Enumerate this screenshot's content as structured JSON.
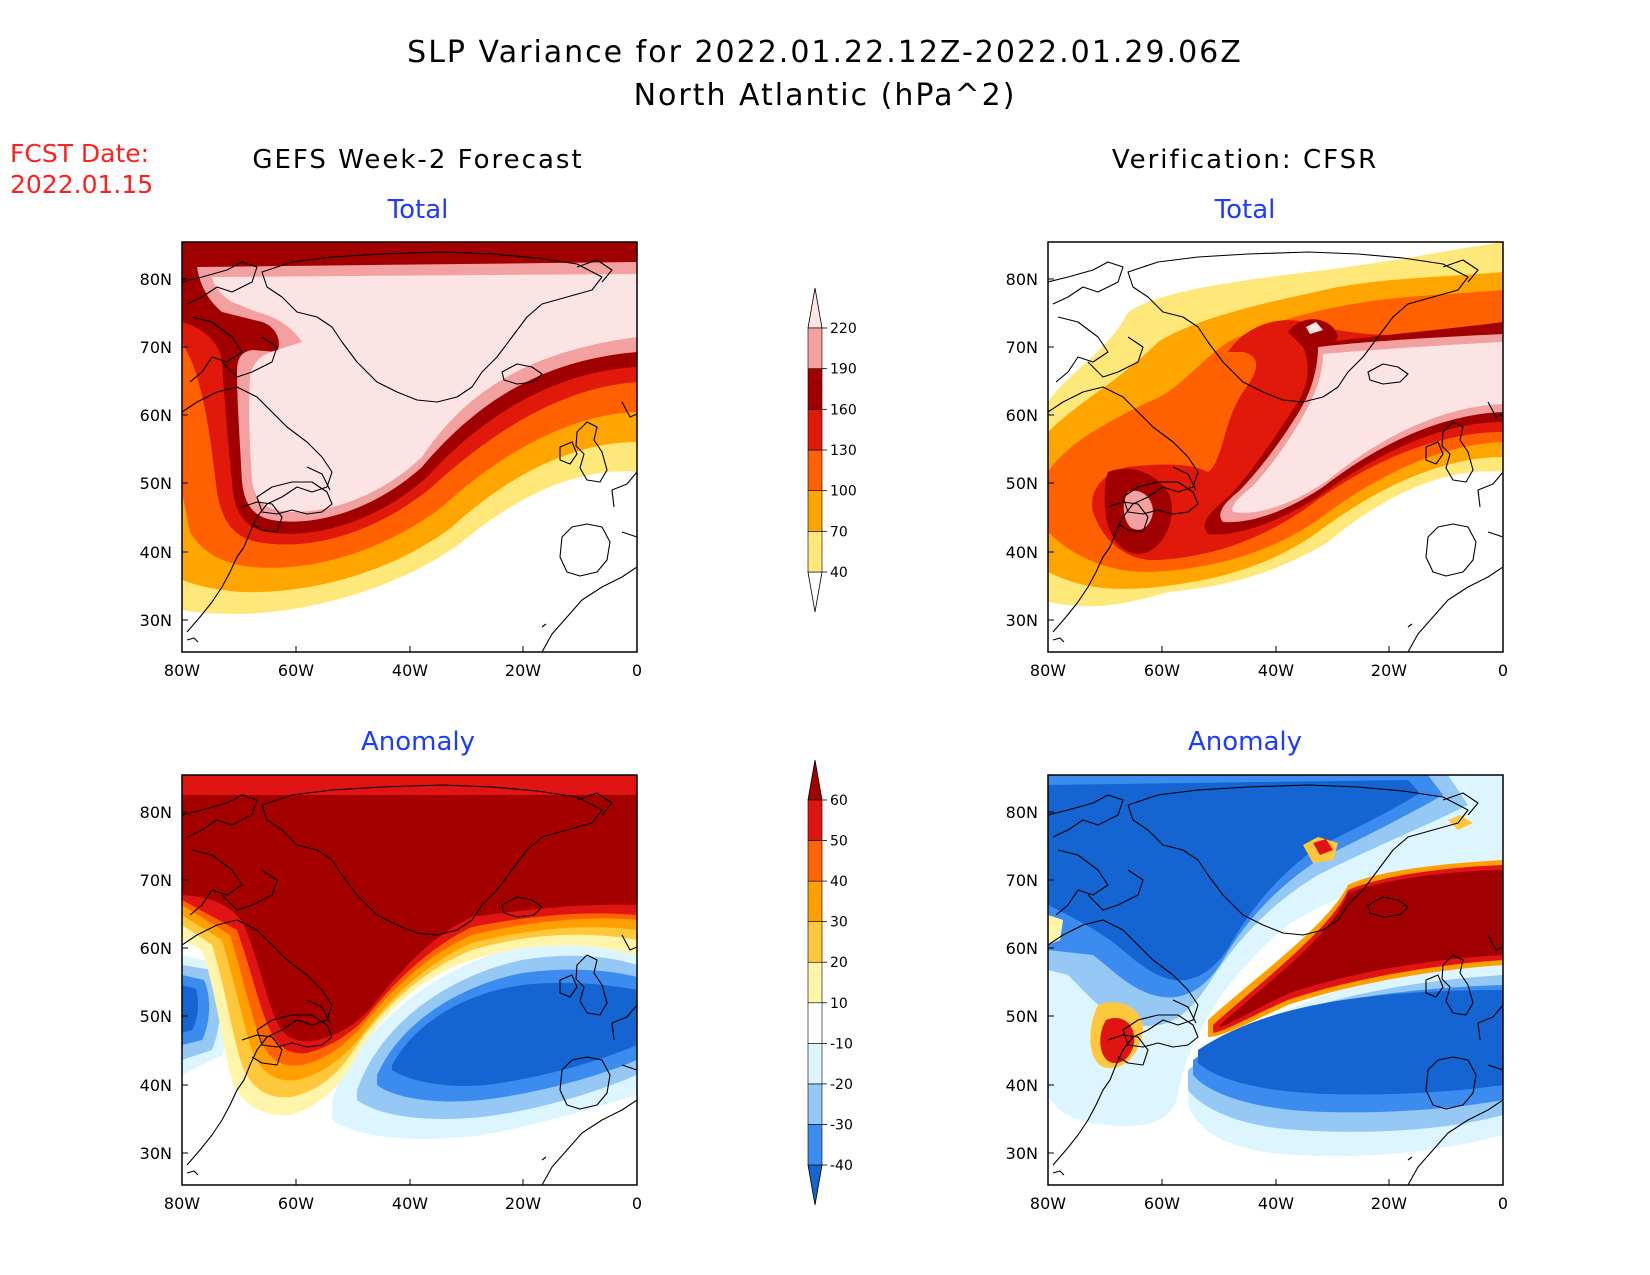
{
  "title": {
    "line1": "SLP Variance for 2022.01.22.12Z-2022.01.29.06Z",
    "line2": "North Atlantic (hPa^2)"
  },
  "fcst_date": {
    "label": "FCST Date:",
    "value": "2022.01.15"
  },
  "columns": {
    "left": "GEFS Week-2 Forecast",
    "right": "Verification: CFSR"
  },
  "panel_titles": {
    "total": "Total",
    "anomaly": "Anomaly"
  },
  "axes": {
    "lat_labels": [
      "80N",
      "70N",
      "60N",
      "50N",
      "40N",
      "30N"
    ],
    "lon_labels": [
      "80W",
      "60W",
      "40W",
      "20W",
      "0"
    ]
  },
  "colors": {
    "title_red": "#ff2020",
    "panel_title_blue": "#1e3cff",
    "total_scale": [
      "#ffffff",
      "#ffe87a",
      "#ffa500",
      "#ff6000",
      "#e0190a",
      "#a00000",
      "#f2a0a0",
      "#fce4e4"
    ],
    "anomaly_scale": [
      "#1464d2",
      "#3c8cf0",
      "#96c8f5",
      "#dcf5ff",
      "#ffffff",
      "#fff5aa",
      "#ffc83c",
      "#ffa000",
      "#ff6400",
      "#e11414",
      "#a50000"
    ]
  },
  "colorbars": {
    "total": {
      "labels": [
        "40",
        "70",
        "100",
        "130",
        "160",
        "190",
        "220"
      ]
    },
    "anomaly": {
      "labels": [
        "-40",
        "-30",
        "-20",
        "-10",
        "10",
        "20",
        "30",
        "40",
        "50",
        "60"
      ]
    }
  }
}
